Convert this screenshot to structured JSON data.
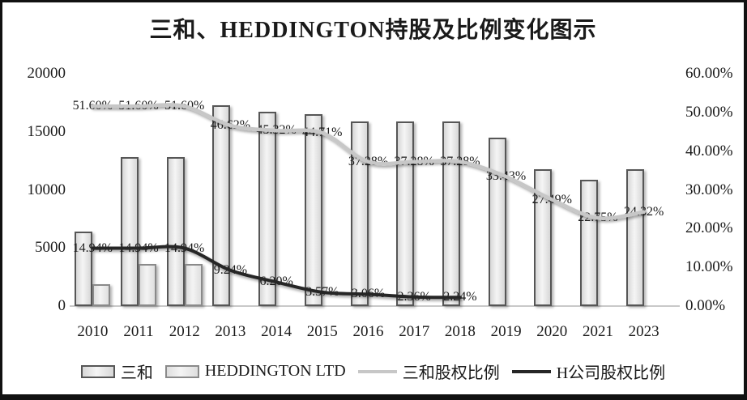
{
  "title": "三和、HEDDINGTON持股及比例变化图示",
  "chart_data": {
    "type": "combo-bar-line",
    "title": "三和、HEDDINGTON持股及比例变化图示",
    "categories": [
      "2010",
      "2011",
      "2012",
      "2013",
      "2014",
      "2015",
      "2016",
      "2017",
      "2018",
      "2019",
      "2020",
      "2021",
      "2023"
    ],
    "bar_series": [
      {
        "name": "三和",
        "axis": "left",
        "values": [
          6400,
          12800,
          12800,
          17300,
          16700,
          16500,
          15900,
          15900,
          15900,
          14500,
          11800,
          10900,
          11800
        ],
        "border_color": "#565656",
        "fill_light": "#f5f5f5",
        "fill_dark": "#d7d7d7"
      },
      {
        "name": "HEDDINGTON LTD",
        "axis": "left",
        "values": [
          1900,
          3600,
          3600,
          null,
          null,
          null,
          null,
          null,
          null,
          null,
          null,
          null,
          null
        ],
        "border_color": "#8a8a8a",
        "fill_light": "#f4f4f4",
        "fill_dark": "#dedede"
      }
    ],
    "line_series": [
      {
        "name": "三和股权比例",
        "axis": "right",
        "color": "#c7c7c7",
        "values": [
          51.6,
          51.6,
          51.6,
          46.62,
          45.32,
          44.71,
          37.28,
          37.28,
          37.28,
          33.43,
          27.49,
          22.75,
          24.32
        ],
        "labels": [
          "51.60%",
          "51.60%",
          "51.60%",
          "46.62%",
          "45.32%",
          "44.71%",
          "37.28%",
          "37.28%",
          "37.28%",
          "33.43%",
          "27.49%",
          "22.75%",
          "24.32%"
        ]
      },
      {
        "name": "H公司股权比例",
        "axis": "right",
        "color": "#262626",
        "values": [
          14.94,
          14.94,
          14.94,
          9.24,
          6.2,
          3.57,
          3.06,
          2.36,
          2.24,
          null,
          null,
          null,
          null
        ],
        "labels": [
          "14.94%",
          "14.94%",
          "14.94%",
          "9.24%",
          "6.20%",
          "3.57%",
          "3.06%",
          "2.36%",
          "2.24%",
          null,
          null,
          null,
          null
        ]
      }
    ],
    "left_axis": {
      "min": 0,
      "max": 20000,
      "ticks": [
        "0",
        "5000",
        "10000",
        "15000",
        "20000"
      ]
    },
    "right_axis": {
      "min": 0,
      "max": 60,
      "ticks": [
        "0.00%",
        "10.00%",
        "20.00%",
        "30.00%",
        "40.00%",
        "50.00%",
        "60.00%"
      ]
    },
    "grid": false,
    "legend_position": "bottom"
  }
}
